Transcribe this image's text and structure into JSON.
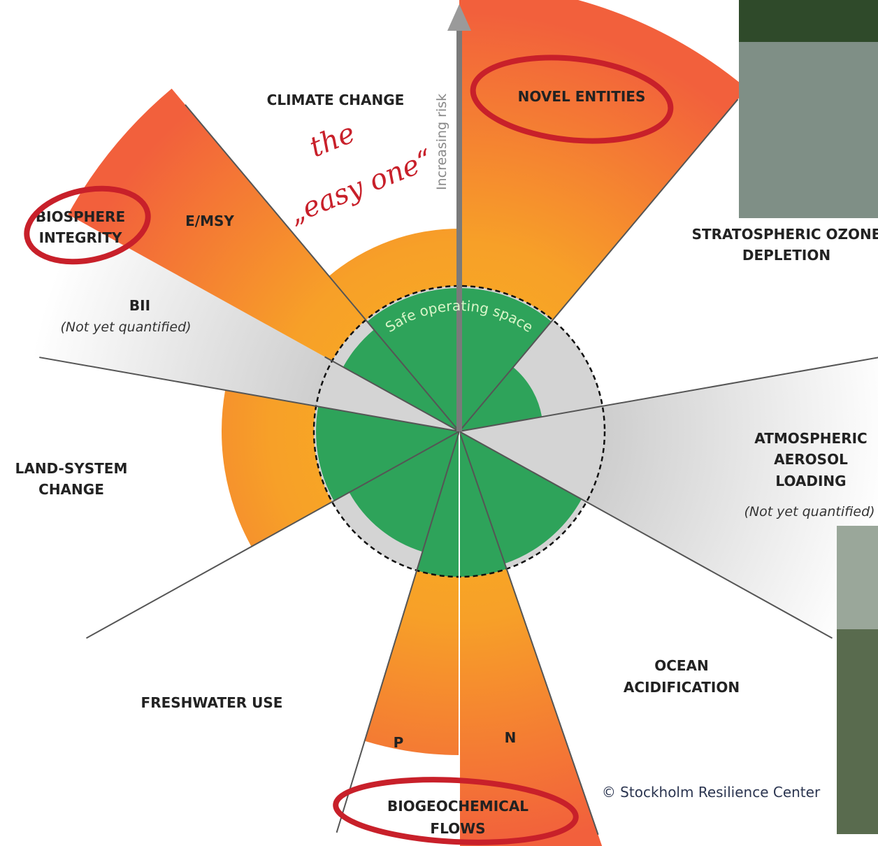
{
  "boundaries": {
    "climate_change": "CLIMATE CHANGE",
    "novel_entities": "NOVEL ENTITIES",
    "ozone": [
      "STRATOSPHERIC OZONE",
      "DEPLETION"
    ],
    "aerosol": [
      "ATMOSPHERIC",
      "AEROSOL",
      "LOADING"
    ],
    "aerosol_note": "(Not yet quantified)",
    "ocean": [
      "OCEAN",
      "ACIDIFICATION"
    ],
    "biogeochemical": [
      "BIOGEOCHEMICAL",
      "FLOWS"
    ],
    "p": "P",
    "n": "N",
    "freshwater": "FRESHWATER USE",
    "land": [
      "LAND-SYSTEM",
      "CHANGE"
    ],
    "bii": "BII",
    "bii_note": "(Not yet quantified)",
    "biosphere": [
      "BIOSPHERE",
      "INTEGRITY"
    ],
    "emsy": "E/MSY"
  },
  "axis_label": "Increasing risk",
  "center_label": "Safe operating space",
  "annotation": [
    "the",
    "„easy one“"
  ],
  "credit": "© Stockholm Resilience Center"
}
